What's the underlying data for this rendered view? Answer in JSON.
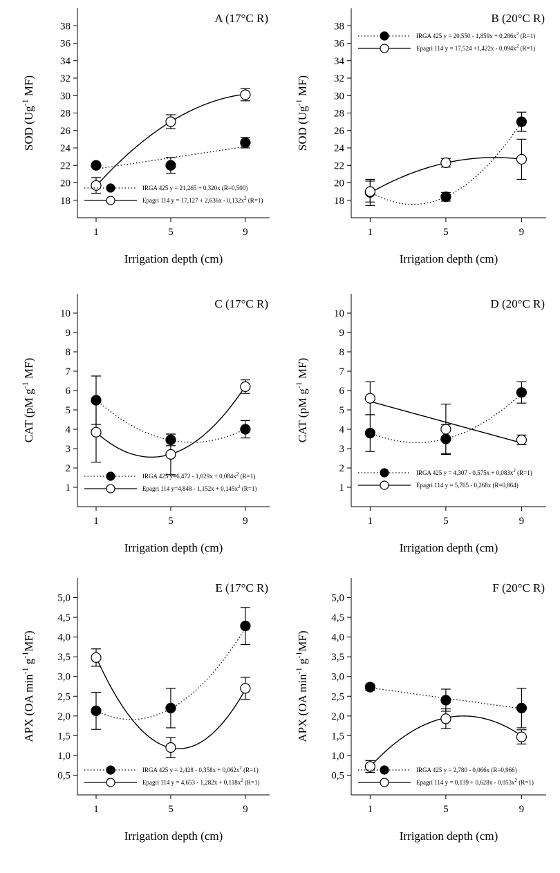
{
  "figure": {
    "xlabel": "Irrigation depth (cm)",
    "x_ticks": [
      1,
      5,
      9
    ],
    "colors": {
      "irga": "#000000",
      "epagri": "#000000",
      "open_fill": "#ffffff"
    }
  },
  "chart_data": [
    {
      "type": "scatter",
      "panel": "A",
      "title": "A (17°C R)",
      "xlabel": "Irrigation depth (cm)",
      "ylabel_main": "SOD (Ug",
      "ylabel_sup": "-1",
      "ylabel_tail": " MF)",
      "xlim": [
        0,
        10.3
      ],
      "ylim": [
        16,
        40
      ],
      "yticks": [
        "18",
        "20",
        "22",
        "24",
        "26",
        "28",
        "30",
        "32",
        "34",
        "36",
        "38"
      ],
      "ytick_values": [
        18,
        20,
        22,
        24,
        26,
        28,
        30,
        32,
        34,
        36,
        38
      ],
      "x": [
        1,
        5,
        9
      ],
      "legend_position": "bottom-left",
      "series": [
        {
          "name": "IRGA 425",
          "equation_pre": "y = 21,265 + 0,320x",
          "equation_sup": "",
          "equation_post": " (R=0,500)",
          "style": "dotted",
          "marker": "filled",
          "values": [
            22.0,
            22.0,
            24.6
          ],
          "errors": [
            0.0,
            0.9,
            0.6
          ],
          "fit": [
            21.265,
            0.32,
            0.0
          ]
        },
        {
          "name": "Epagri 114",
          "equation_pre": "y = 17,127 + 2,636x - 0,132x",
          "equation_sup": "2",
          "equation_post": " (R=1)",
          "style": "solid",
          "marker": "open",
          "values": [
            19.7,
            27.0,
            30.1
          ],
          "errors": [
            0.9,
            0.8,
            0.7
          ],
          "fit": [
            17.127,
            2.636,
            -0.132
          ]
        }
      ]
    },
    {
      "type": "scatter",
      "panel": "B",
      "title": "B (20°C R)",
      "xlabel": "Irrigation depth (cm)",
      "ylabel_main": "SOD (Ug",
      "ylabel_sup": "-1",
      "ylabel_tail": " MF)",
      "xlim": [
        0,
        10.3
      ],
      "ylim": [
        16,
        40
      ],
      "yticks": [
        "18",
        "20",
        "22",
        "24",
        "26",
        "28",
        "30",
        "32",
        "34",
        "36",
        "38"
      ],
      "ytick_values": [
        18,
        20,
        22,
        24,
        26,
        28,
        30,
        32,
        34,
        36,
        38
      ],
      "x": [
        1,
        5,
        9
      ],
      "legend_position": "top-left",
      "series": [
        {
          "name": "IRGA 425",
          "equation_pre": "y = 20,550 - 1,859x + 0,286x",
          "equation_sup": "2",
          "equation_post": " (R=1)",
          "style": "dotted",
          "marker": "filled",
          "values": [
            18.9,
            18.4,
            27.0
          ],
          "errors": [
            1.5,
            0.5,
            1.1
          ],
          "fit": [
            20.55,
            -1.859,
            0.286
          ]
        },
        {
          "name": "Epagri 114",
          "equation_pre": "y = 17,524 +1,422x - 0,094x",
          "equation_sup": "2",
          "equation_post": " (R=1)",
          "style": "solid",
          "marker": "open",
          "values": [
            19.0,
            22.3,
            22.7
          ],
          "errors": [
            1.2,
            0.5,
            2.3
          ],
          "fit": [
            17.524,
            1.422,
            -0.094
          ]
        }
      ]
    },
    {
      "type": "scatter",
      "panel": "C",
      "title": "C (17°C R)",
      "xlabel": "Irrigation depth (cm)",
      "ylabel_main": "CAT (pM g",
      "ylabel_sup": "-1",
      "ylabel_tail": " MF)",
      "xlim": [
        0,
        10.3
      ],
      "ylim": [
        0,
        11
      ],
      "yticks": [
        "1",
        "2",
        "3",
        "4",
        "5",
        "6",
        "7",
        "8",
        "9",
        "10"
      ],
      "ytick_values": [
        1,
        2,
        3,
        4,
        5,
        6,
        7,
        8,
        9,
        10
      ],
      "x": [
        1,
        5,
        9
      ],
      "legend_position": "bottom-left",
      "series": [
        {
          "name": "IRGA 425",
          "equation_pre": "y=6,472 - 1,029x + 0,084x",
          "equation_sup": "2",
          "equation_post": " (R=1)",
          "style": "dotted",
          "marker": "filled",
          "values": [
            5.5,
            3.45,
            4.0
          ],
          "errors": [
            1.25,
            0.3,
            0.45
          ],
          "fit": [
            6.472,
            -1.029,
            0.084
          ]
        },
        {
          "name": "Epagri 114",
          "equation_pre": "y=4,848 - 1,152x + 0,145x",
          "equation_sup": "2",
          "equation_post": " (R=1)",
          "style": "solid",
          "marker": "open",
          "values": [
            3.85,
            2.7,
            6.2
          ],
          "errors": [
            1.55,
            1.05,
            0.35
          ],
          "fit": [
            4.848,
            -1.152,
            0.145
          ]
        }
      ]
    },
    {
      "type": "scatter",
      "panel": "D",
      "title": "D (20°C R)",
      "xlabel": "Irrigation depth (cm)",
      "ylabel_main": "CAT (pM g",
      "ylabel_sup": "-1",
      "ylabel_tail": " MF)",
      "xlim": [
        0,
        10.3
      ],
      "ylim": [
        0,
        11
      ],
      "yticks": [
        "1",
        "2",
        "3",
        "4",
        "5",
        "6",
        "7",
        "8",
        "9",
        "10"
      ],
      "ytick_values": [
        1,
        2,
        3,
        4,
        5,
        6,
        7,
        8,
        9,
        10
      ],
      "x": [
        1,
        5,
        9
      ],
      "legend_position": "bottom-left",
      "series": [
        {
          "name": "IRGA 425",
          "equation_pre": "y = 4,307 - 0,575x + 0,083x",
          "equation_sup": "2",
          "equation_post": " (R=1)",
          "style": "dotted",
          "marker": "filled",
          "values": [
            3.8,
            3.5,
            5.9
          ],
          "errors": [
            0.95,
            0.75,
            0.55
          ],
          "fit": [
            4.307,
            -0.575,
            0.083
          ]
        },
        {
          "name": "Epagri 114",
          "equation_pre": "y = 5,705 - 0,268x",
          "equation_sup": "",
          "equation_post": " (R=0,864)",
          "style": "solid",
          "marker": "open",
          "values": [
            5.6,
            4.0,
            3.45
          ],
          "errors": [
            0.85,
            1.3,
            0.25
          ],
          "fit": [
            5.705,
            -0.268,
            0.0
          ]
        }
      ]
    },
    {
      "type": "scatter",
      "panel": "E",
      "title": "E (17°C R)",
      "xlabel": "Irrigation depth (cm)",
      "ylabel_main": "APX (OA min",
      "ylabel_sup": "-1",
      "ylabel_mid": " g",
      "ylabel_sup2": "-1",
      "ylabel_tail": "MF)",
      "xlim": [
        0,
        10.3
      ],
      "ylim": [
        0,
        5.5
      ],
      "yticks": [
        "0,5",
        "1,0",
        "1,5",
        "2,0",
        "2,5",
        "3,0",
        "3,5",
        "4,0",
        "4,5",
        "5,0"
      ],
      "ytick_values": [
        0.5,
        1.0,
        1.5,
        2.0,
        2.5,
        3.0,
        3.5,
        4.0,
        4.5,
        5.0
      ],
      "x": [
        1,
        5,
        9
      ],
      "legend_position": "bottom-left",
      "series": [
        {
          "name": "IRGA 425",
          "equation_pre": "y = 2,428 - 0,358x + 0,062x",
          "equation_sup": "2",
          "equation_post": " (R=1)",
          "style": "dotted",
          "marker": "filled",
          "values": [
            2.13,
            2.2,
            4.28
          ],
          "errors": [
            0.47,
            0.5,
            0.47
          ],
          "fit": [
            2.428,
            -0.358,
            0.062
          ]
        },
        {
          "name": "Epagri 114",
          "equation_pre": "y = 4,653 - 1,282x + 0,118x",
          "equation_sup": "2",
          "equation_post": " (R=1)",
          "style": "solid",
          "marker": "open",
          "values": [
            3.48,
            1.2,
            2.7
          ],
          "errors": [
            0.22,
            0.25,
            0.28
          ],
          "fit": [
            4.653,
            -1.282,
            0.118
          ]
        }
      ]
    },
    {
      "type": "scatter",
      "panel": "F",
      "title": "F (20°C R)",
      "xlabel": "Irrigation depth (cm)",
      "ylabel_main": "APX (OA min",
      "ylabel_sup": "-1",
      "ylabel_mid": " g",
      "ylabel_sup2": "-1",
      "ylabel_tail": "MF)",
      "xlim": [
        0,
        10.3
      ],
      "ylim": [
        0,
        5.5
      ],
      "yticks": [
        "0,5",
        "1,0",
        "1,5",
        "2,0",
        "2,5",
        "3,0",
        "3,5",
        "4,0",
        "4,5",
        "5,0"
      ],
      "ytick_values": [
        0.5,
        1.0,
        1.5,
        2.0,
        2.5,
        3.0,
        3.5,
        4.0,
        4.5,
        5.0
      ],
      "x": [
        1,
        5,
        9
      ],
      "legend_position": "bottom-left",
      "series": [
        {
          "name": "IRGA 425",
          "equation_pre": "y = 2,780 - 0,066x",
          "equation_sup": "",
          "equation_post": " (R=0,966)",
          "style": "dotted",
          "marker": "filled",
          "values": [
            2.73,
            2.4,
            2.2
          ],
          "errors": [
            0.08,
            0.28,
            0.5
          ],
          "fit": [
            2.78,
            -0.066,
            0.0
          ]
        },
        {
          "name": "Epagri 114",
          "equation_pre": "y = 0,139 + 0,628x - 0,053x",
          "equation_sup": "2",
          "equation_post": " (R=1)",
          "style": "solid",
          "marker": "open",
          "values": [
            0.72,
            1.93,
            1.47
          ],
          "errors": [
            0.15,
            0.25,
            0.18
          ],
          "fit": [
            0.139,
            0.628,
            -0.053
          ]
        }
      ]
    }
  ]
}
